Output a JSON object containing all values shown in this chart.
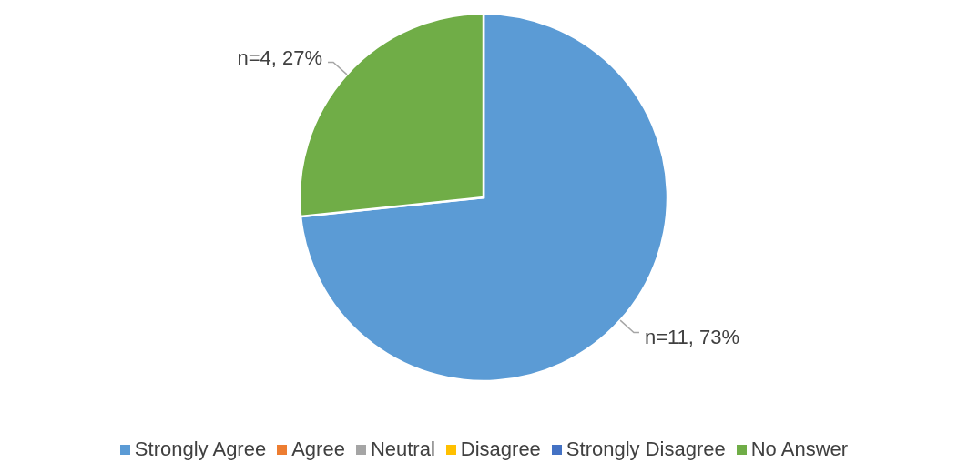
{
  "chart_data": {
    "type": "pie",
    "categories": [
      "Strongly Agree",
      "Agree",
      "Neutral",
      "Disagree",
      "Strongly Disagree",
      "No Answer"
    ],
    "values": [
      11,
      0,
      0,
      0,
      0,
      4
    ],
    "value_labels": [
      "n=11, 73%",
      null,
      null,
      null,
      null,
      "n=4, 27%"
    ],
    "colors": [
      "#5b9bd5",
      "#ed7d31",
      "#a5a5a5",
      "#ffc000",
      "#4472c4",
      "#70ad47"
    ],
    "legend": "bottom"
  }
}
